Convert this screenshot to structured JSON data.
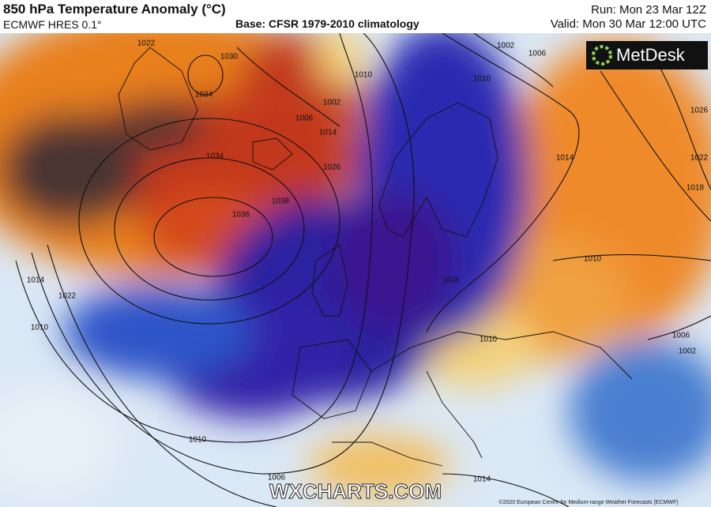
{
  "header": {
    "title": "850 hPa Temperature Anomaly (°C)",
    "model": "ECMWF HRES 0.1°",
    "base": "Base: CFSR 1979-2010 climatology",
    "run": "Run: Mon 23 Mar 12Z",
    "valid": "Valid: Mon 30 Mar 12:00 UTC"
  },
  "logo": "MetDesk",
  "watermark": "WXCHARTS.COM",
  "copyright": "©2020 European Centre for Medium-range Weather Forecasts (ECMWF)",
  "isobar_labels": [
    1022,
    1030,
    1034,
    1010,
    1002,
    1006,
    1014,
    1026,
    1034,
    1038,
    1036,
    1002,
    1006,
    1010,
    1014,
    1026,
    1022,
    1018,
    1010,
    1018,
    1010,
    1006,
    1002,
    1014,
    1022,
    1010,
    1010,
    1006,
    1014
  ]
}
